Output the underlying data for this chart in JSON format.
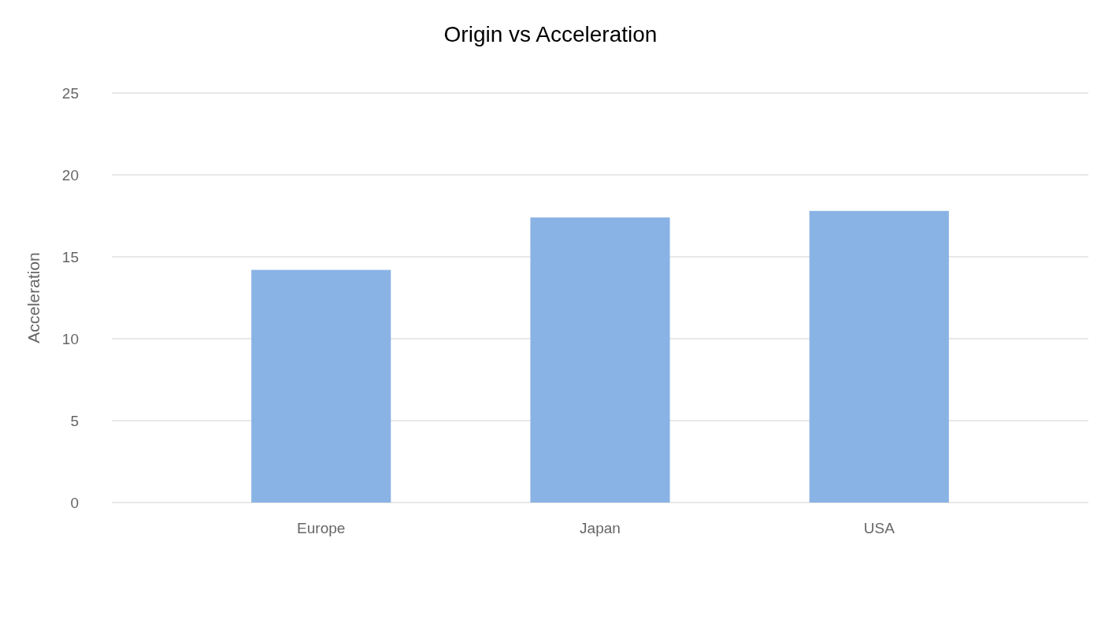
{
  "chart_data": {
    "type": "bar",
    "title": "Origin vs Acceleration",
    "ylabel": "Acceleration",
    "categories": [
      "Europe",
      "Japan",
      "USA"
    ],
    "values": [
      14.2,
      17.4,
      17.8
    ],
    "color": "#8ab3e5",
    "ylim": [
      0,
      25
    ],
    "yticks": [
      0,
      5,
      10,
      15,
      20,
      25
    ],
    "grid": "y"
  }
}
